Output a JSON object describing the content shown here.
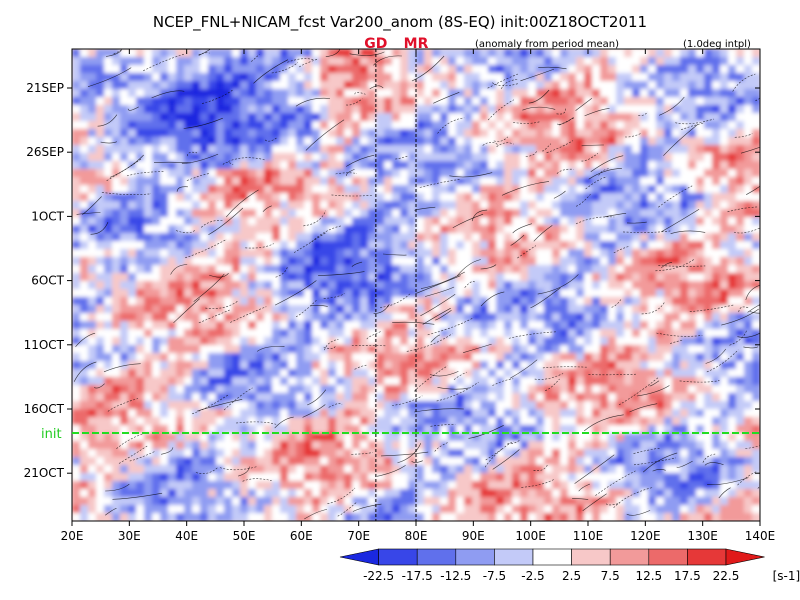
{
  "chart_data": {
    "type": "heatmap",
    "title": "NCEP_FNL+NICAM_fcst Var200_anom (8S-EQ) init:00Z18OCT2011",
    "subtitle_left": "(anomaly from period mean)",
    "subtitle_right": "(1.0deg intpl)",
    "x_axis": {
      "ticks": [
        "20E",
        "30E",
        "40E",
        "50E",
        "60E",
        "70E",
        "80E",
        "90E",
        "100E",
        "110E",
        "120E",
        "130E",
        "140E"
      ],
      "range": [
        20,
        140
      ]
    },
    "y_axis": {
      "ticks": [
        "21SEP",
        "26SEP",
        "1OCT",
        "6OCT",
        "11OCT",
        "16OCT",
        "21OCT"
      ]
    },
    "markers": [
      {
        "label": "GD",
        "lon": 73
      },
      {
        "label": "MR",
        "lon": 80
      }
    ],
    "init_label": "init",
    "colorbar": {
      "levels": [
        "-22.5",
        "-17.5",
        "-12.5",
        "-7.5",
        "-2.5",
        "2.5",
        "7.5",
        "12.5",
        "17.5",
        "22.5"
      ],
      "unit": "[s-1]",
      "colors": [
        "#1a28e0",
        "#3846e8",
        "#6070ec",
        "#8f9cf2",
        "#c3caf8",
        "#ffffff",
        "#f7c8c8",
        "#f29a9a",
        "#ec6a6a",
        "#e63838",
        "#e01a1a"
      ]
    }
  }
}
